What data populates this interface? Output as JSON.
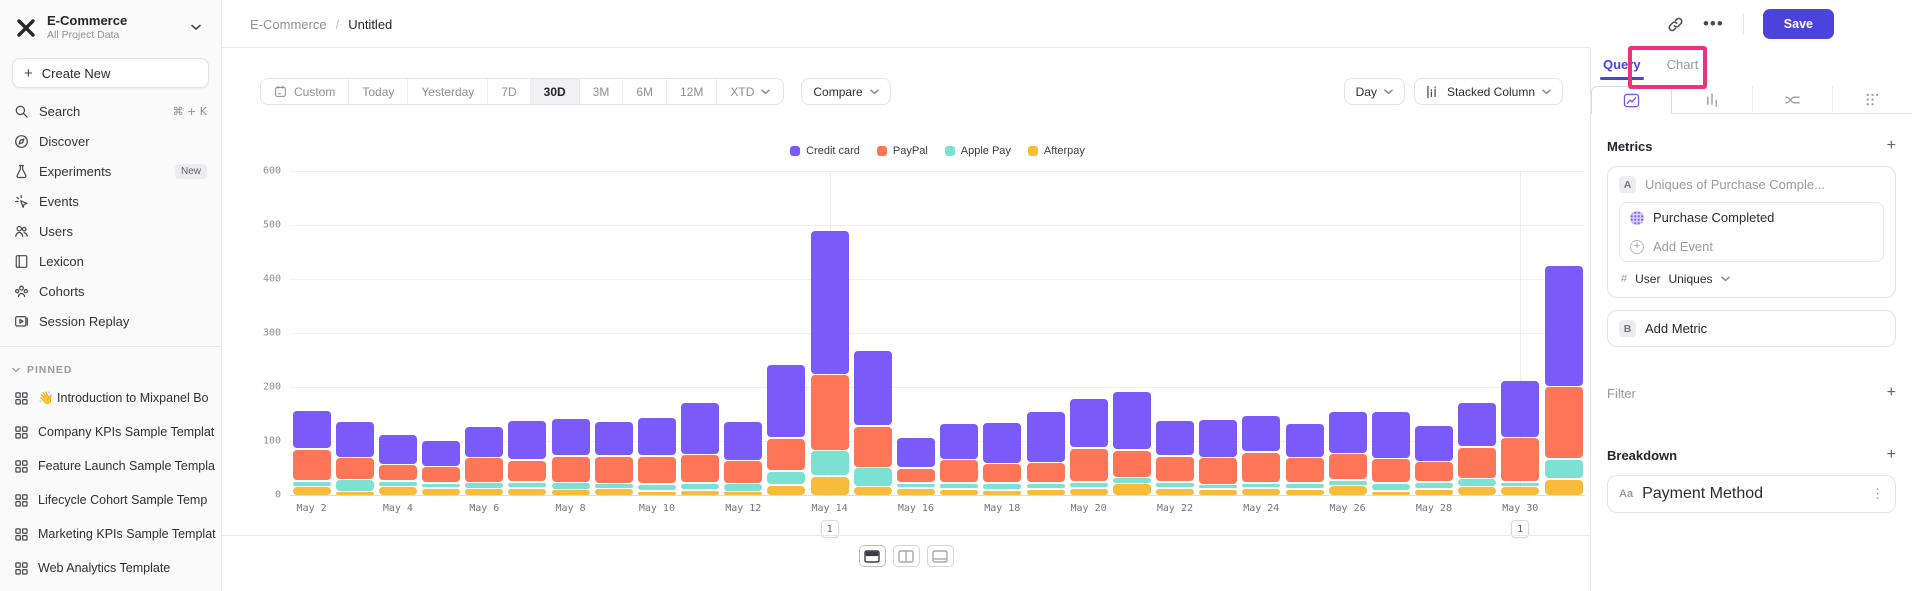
{
  "sidebar": {
    "project": {
      "name": "E-Commerce",
      "subtitle": "All Project Data"
    },
    "create_new_label": "Create New",
    "nav": [
      {
        "label": "Search",
        "icon": "search",
        "shortcut": "⌘ + K"
      },
      {
        "label": "Discover",
        "icon": "compass"
      },
      {
        "label": "Experiments",
        "icon": "flask",
        "badge": "New"
      },
      {
        "label": "Events",
        "icon": "spark"
      },
      {
        "label": "Users",
        "icon": "users"
      },
      {
        "label": "Lexicon",
        "icon": "book"
      },
      {
        "label": "Cohorts",
        "icon": "cohort"
      },
      {
        "label": "Session Replay",
        "icon": "replay"
      }
    ],
    "pinned_header": "PINNED",
    "pinned": [
      "👋 Introduction to Mixpanel Bo",
      "Company KPIs Sample Templat",
      "Feature Launch Sample Templa",
      "Lifecycle Cohort Sample Temp",
      "Marketing KPIs Sample Templat",
      "Web Analytics Template"
    ]
  },
  "topbar": {
    "breadcrumb_project": "E-Commerce",
    "breadcrumb_sep": "/",
    "breadcrumb_current": "Untitled",
    "icons": [
      "link",
      "more"
    ],
    "save_label": "Save",
    "save_color": "#4c43dd"
  },
  "toolbar": {
    "date_ranges": [
      "Custom",
      "Today",
      "Yesterday",
      "7D",
      "30D",
      "3M",
      "6M",
      "12M",
      "XTD"
    ],
    "active_range": "30D",
    "compare_label": "Compare",
    "granularity_label": "Day",
    "chart_type_label": "Stacked Column"
  },
  "right_panel": {
    "tabs": {
      "query": "Query",
      "chart": "Chart"
    },
    "active_tab": "Query",
    "icon_tabs": [
      "insights",
      "bars",
      "flows",
      "retention"
    ],
    "metrics_header": "Metrics",
    "metric_a": {
      "badge": "A",
      "placeholder": "Uniques of Purchase Comple...",
      "event_name": "Purchase Completed",
      "add_event_label": "Add Event",
      "count_prefix": "#",
      "count_entity": "User",
      "count_type": "Uniques"
    },
    "metric_b": {
      "badge": "B",
      "label": "Add Metric"
    },
    "filter_header": "Filter",
    "breakdown_header": "Breakdown",
    "breakdown_item": {
      "prefix": "Aa",
      "label": "Payment Method"
    },
    "highlight_color": "#f2317e",
    "accent_color": "#4c43dd"
  },
  "chart_data": {
    "type": "bar",
    "stacked": true,
    "title": "",
    "xlabel": "",
    "ylabel": "",
    "ylim": [
      0,
      600
    ],
    "yticks": [
      0,
      100,
      200,
      300,
      400,
      500,
      600
    ],
    "grid": true,
    "legend_position": "top-center",
    "categories": [
      "May 2",
      "May 3",
      "May 4",
      "May 5",
      "May 6",
      "May 7",
      "May 8",
      "May 9",
      "May 10",
      "May 11",
      "May 12",
      "May 13",
      "May 14",
      "May 15",
      "May 16",
      "May 17",
      "May 18",
      "May 19",
      "May 20",
      "May 21",
      "May 22",
      "May 23",
      "May 24",
      "May 25",
      "May 26",
      "May 27",
      "May 28",
      "May 29",
      "May 30",
      "May 31"
    ],
    "x_tick_step": 2,
    "stack_order_top_to_bottom": [
      "Credit card",
      "PayPal",
      "Apple Pay",
      "Afterpay"
    ],
    "series": [
      {
        "name": "Credit card",
        "color": "#7a5af8",
        "values": [
          70,
          63,
          53,
          46,
          54,
          70,
          68,
          61,
          70,
          95,
          70,
          134,
          265,
          138,
          55,
          64,
          74,
          93,
          90,
          106,
          64,
          68,
          65,
          60,
          75,
          84,
          65,
          80,
          102,
          222
        ]
      },
      {
        "name": "PayPal",
        "color": "#ff7557",
        "values": [
          56,
          38,
          28,
          28,
          44,
          38,
          46,
          48,
          49,
          50,
          40,
          59,
          138,
          74,
          25,
          41,
          33,
          35,
          60,
          48,
          45,
          48,
          55,
          45,
          46,
          43,
          35,
          56,
          80,
          131
        ]
      },
      {
        "name": "Apple Pay",
        "color": "#7ce0d3",
        "values": [
          8,
          20,
          8,
          6,
          8,
          8,
          10,
          6,
          10,
          10,
          12,
          23,
          44,
          33,
          6,
          8,
          10,
          8,
          8,
          8,
          8,
          5,
          6,
          8,
          8,
          12,
          10,
          12,
          6,
          35
        ]
      },
      {
        "name": "Afterpay",
        "color": "#f8bc3b",
        "values": [
          14,
          5,
          14,
          12,
          11,
          12,
          9,
          11,
          6,
          8,
          5,
          17,
          34,
          14,
          12,
          10,
          8,
          10,
          12,
          20,
          12,
          10,
          12,
          10,
          16,
          6,
          10,
          14,
          14,
          28
        ]
      }
    ],
    "annotations": [
      {
        "label": "1",
        "category": "May 14",
        "index": 12
      },
      {
        "label": "1",
        "category": "May 30",
        "index": 28
      }
    ]
  }
}
